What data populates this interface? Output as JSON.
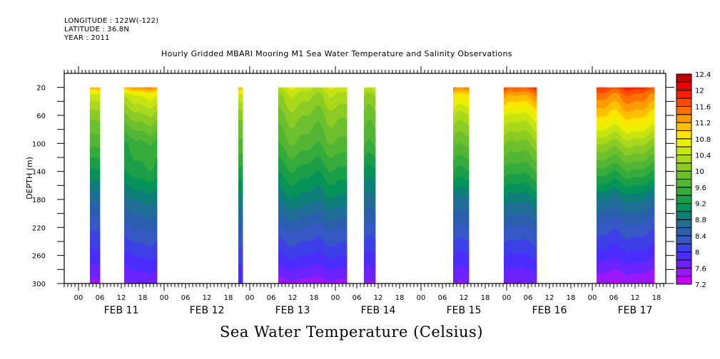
{
  "header": {
    "longitude": "LONGITUDE : 122W(-122)",
    "latitude": "LATITUDE : 36.8N",
    "year": "YEAR : 2011"
  },
  "chart_data": {
    "type": "heatmap",
    "title": "Hourly Gridded MBARI Mooring M1 Sea Water Temperature and Salinity Observations",
    "xlabel": "",
    "ylabel": "DEPTH (m)",
    "variable_label": "Sea Water Temperature (Celsius)",
    "x_axis": {
      "units": "hours since FEB 11 00:00",
      "range": [
        -4,
        164.6
      ],
      "hour_tick_labels": [
        "00",
        "06",
        "12",
        "18"
      ],
      "day_labels": [
        "FEB 11",
        "FEB 12",
        "FEB 13",
        "FEB 14",
        "FEB 15",
        "FEB 16",
        "FEB 17"
      ]
    },
    "y_axis": {
      "range": [
        0,
        300
      ],
      "inverted": true,
      "ticks": [
        20,
        60,
        100,
        140,
        180,
        220,
        260,
        300
      ]
    },
    "colorbar": {
      "min": 7.2,
      "max": 12.4,
      "step": 0.2,
      "tick_labels": [
        "12.4",
        "12",
        "11.6",
        "11.2",
        "10.8",
        "10.4",
        "10",
        "9.6",
        "9.2",
        "8.8",
        "8.4",
        "8",
        "7.6",
        "7.2"
      ],
      "colors": [
        "#c800ff",
        "#9a18ff",
        "#6a22ff",
        "#4a2cff",
        "#3c40e6",
        "#3558c4",
        "#2a5fae",
        "#1e6e96",
        "#0e7f78",
        "#05935a",
        "#1a9e48",
        "#34ab3a",
        "#52b534",
        "#6cc02e",
        "#8ccb24",
        "#aad81a",
        "#c8e410",
        "#e8f000",
        "#ffe600",
        "#ffbf00",
        "#ff9a00",
        "#ff7000",
        "#ff4a00",
        "#ff1e00",
        "#e60000",
        "#c00000"
      ]
    },
    "blocks": [
      {
        "start_hour": 3.2,
        "end_hour": 6.0,
        "profile": [
          [
            20,
            11.1
          ],
          [
            30,
            10.5
          ],
          [
            60,
            10.0
          ],
          [
            100,
            9.6
          ],
          [
            140,
            9.1
          ],
          [
            180,
            8.6
          ],
          [
            220,
            8.2
          ],
          [
            260,
            7.9
          ],
          [
            300,
            7.5
          ]
        ]
      },
      {
        "start_hour": 12.8,
        "end_hour": 22.0,
        "profile": [
          [
            20,
            11.3
          ],
          [
            30,
            10.6
          ],
          [
            60,
            10.1
          ],
          [
            100,
            9.5
          ],
          [
            140,
            9.3
          ],
          [
            180,
            8.8
          ],
          [
            220,
            8.4
          ],
          [
            260,
            8.0
          ],
          [
            300,
            7.6
          ]
        ]
      },
      {
        "start_hour": 44.8,
        "end_hour": 46.0,
        "profile": [
          [
            20,
            11.0
          ],
          [
            30,
            10.4
          ],
          [
            60,
            9.9
          ],
          [
            100,
            9.6
          ],
          [
            140,
            9.2
          ],
          [
            180,
            8.8
          ],
          [
            220,
            8.4
          ],
          [
            260,
            8.0
          ],
          [
            300,
            7.8
          ]
        ]
      },
      {
        "start_hour": 56.0,
        "end_hour": 75.2,
        "profile": [
          [
            20,
            10.5
          ],
          [
            30,
            10.3
          ],
          [
            60,
            10.0
          ],
          [
            100,
            9.7
          ],
          [
            140,
            9.3
          ],
          [
            180,
            8.9
          ],
          [
            220,
            8.4
          ],
          [
            260,
            8.0
          ],
          [
            300,
            7.5
          ]
        ]
      },
      {
        "start_hour": 80.0,
        "end_hour": 83.2,
        "profile": [
          [
            20,
            10.6
          ],
          [
            30,
            10.3
          ],
          [
            60,
            10.0
          ],
          [
            100,
            9.7
          ],
          [
            140,
            9.2
          ],
          [
            180,
            8.8
          ],
          [
            220,
            8.4
          ],
          [
            260,
            8.0
          ],
          [
            300,
            7.6
          ]
        ]
      },
      {
        "start_hour": 105.0,
        "end_hour": 109.4,
        "profile": [
          [
            20,
            11.5
          ],
          [
            30,
            11.0
          ],
          [
            60,
            10.4
          ],
          [
            100,
            9.9
          ],
          [
            140,
            9.4
          ],
          [
            180,
            8.8
          ],
          [
            220,
            8.4
          ],
          [
            260,
            8.0
          ],
          [
            300,
            7.6
          ]
        ]
      },
      {
        "start_hour": 119.2,
        "end_hour": 128.4,
        "profile": [
          [
            20,
            11.7
          ],
          [
            30,
            11.3
          ],
          [
            60,
            10.6
          ],
          [
            100,
            10.0
          ],
          [
            140,
            9.5
          ],
          [
            180,
            8.9
          ],
          [
            220,
            8.4
          ],
          [
            260,
            8.0
          ],
          [
            300,
            7.6
          ]
        ]
      },
      {
        "start_hour": 145.2,
        "end_hour": 161.4,
        "profile": [
          [
            20,
            11.8
          ],
          [
            30,
            11.5
          ],
          [
            60,
            11.0
          ],
          [
            100,
            10.2
          ],
          [
            140,
            9.5
          ],
          [
            180,
            8.8
          ],
          [
            220,
            8.3
          ],
          [
            260,
            7.9
          ],
          [
            300,
            7.4
          ]
        ]
      }
    ]
  }
}
